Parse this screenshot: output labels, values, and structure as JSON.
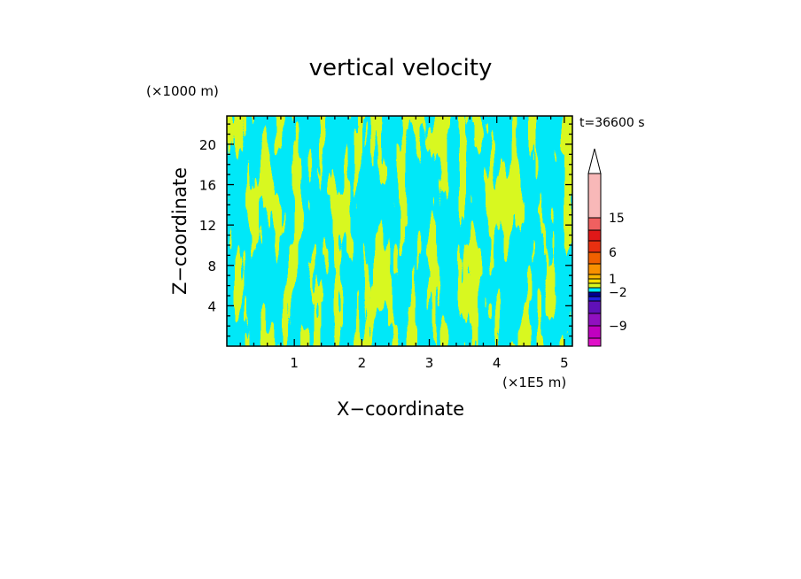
{
  "chart_data": {
    "type": "heatmap",
    "title": "vertical velocity",
    "xlabel": "X−coordinate",
    "ylabel": "Z−coordinate",
    "x_unit": "(×1E5 m)",
    "y_unit": "(×1000 m)",
    "time_label": "t=36600 s",
    "xlim": [
      0,
      5.12
    ],
    "ylim": [
      0,
      22.8
    ],
    "x_ticks": [
      {
        "value": 1,
        "label": "1"
      },
      {
        "value": 2,
        "label": "2"
      },
      {
        "value": 3,
        "label": "3"
      },
      {
        "value": 4,
        "label": "4"
      },
      {
        "value": 5,
        "label": "5"
      }
    ],
    "y_ticks": [
      {
        "value": 4,
        "label": "4"
      },
      {
        "value": 8,
        "label": "8"
      },
      {
        "value": 12,
        "label": "12"
      },
      {
        "value": 16,
        "label": "16"
      },
      {
        "value": 20,
        "label": "20"
      }
    ],
    "field_colors": {
      "negative": "#00e8f8",
      "positive": "#d8f820"
    },
    "colorbar": {
      "levels_bottom_to_top": [
        {
          "color": "#e010c8"
        },
        {
          "color": "#c000c0"
        },
        {
          "color": "#9010c0"
        },
        {
          "color": "#6010b8"
        },
        {
          "color": "#2020e0"
        },
        {
          "color": "#000090"
        },
        {
          "color": "#00e8f8"
        },
        {
          "color": "#d8f820"
        },
        {
          "color": "#f8e000"
        },
        {
          "color": "#f8b800"
        },
        {
          "color": "#f89000"
        },
        {
          "color": "#f06000"
        },
        {
          "color": "#e83010"
        },
        {
          "color": "#e01818"
        },
        {
          "color": "#f06060"
        },
        {
          "color": "#f8b8b8"
        }
      ],
      "labels": [
        {
          "text": "−9",
          "level_index": 1
        },
        {
          "text": "−2",
          "level_index": 5
        },
        {
          "text": "1",
          "level_index": 8
        },
        {
          "text": "6",
          "level_index": 11
        },
        {
          "text": "15",
          "level_index": 14
        }
      ]
    }
  }
}
